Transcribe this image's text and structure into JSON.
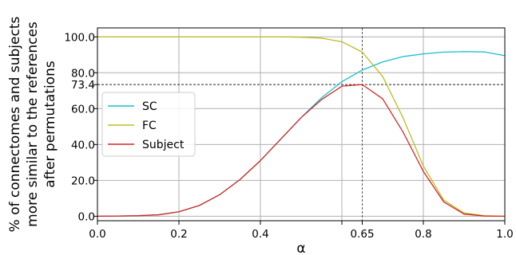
{
  "chart_data": {
    "type": "line",
    "xlabel": "α",
    "ylabel_lines": [
      "% of connectomes and subjects",
      "more similar to the references",
      "after permutations"
    ],
    "xlim": [
      0.0,
      1.0
    ],
    "ylim": [
      -2.5,
      105
    ],
    "x_ticks": [
      0.0,
      0.2,
      0.4,
      0.6,
      0.65,
      0.8,
      1.0
    ],
    "x_tick_labels": [
      "0.0",
      "0.2",
      "0.4",
      "",
      "0.65",
      "0.8",
      "1.0"
    ],
    "y_ticks": [
      0.0,
      20.0,
      40.0,
      60.0,
      73.4,
      80.0,
      100.0
    ],
    "y_tick_labels": [
      "0.0",
      "20.0",
      "40.0",
      "60.0",
      "73.4",
      "80.0",
      "100.0"
    ],
    "grid": true,
    "legend_position": "center-left",
    "reference_lines": {
      "x": 0.65,
      "y": 73.4
    },
    "x": [
      0.0,
      0.05,
      0.1,
      0.15,
      0.2,
      0.25,
      0.3,
      0.35,
      0.4,
      0.45,
      0.5,
      0.55,
      0.6,
      0.65,
      0.7,
      0.75,
      0.8,
      0.85,
      0.9,
      0.95,
      1.0
    ],
    "series": [
      {
        "name": "SC",
        "color": "#17becf",
        "values": [
          0.0,
          0.1,
          0.3,
          0.8,
          2.5,
          6.0,
          12.0,
          20.5,
          31.0,
          43.0,
          55.0,
          66.0,
          75.0,
          81.5,
          86.0,
          89.0,
          90.5,
          91.5,
          91.8,
          91.6,
          89.5
        ]
      },
      {
        "name": "FC",
        "color": "#bcbd22",
        "values": [
          100.0,
          100.0,
          100.0,
          100.0,
          100.0,
          100.0,
          100.0,
          100.0,
          100.0,
          100.0,
          99.8,
          99.3,
          97.3,
          91.5,
          78.0,
          55.0,
          28.0,
          9.0,
          1.8,
          0.3,
          0.0
        ]
      },
      {
        "name": "Subject",
        "color": "#d62728",
        "values": [
          0.0,
          0.1,
          0.3,
          0.8,
          2.5,
          6.0,
          12.0,
          20.5,
          31.0,
          43.0,
          55.0,
          65.0,
          72.5,
          73.4,
          65.5,
          47.0,
          25.0,
          8.0,
          1.2,
          0.1,
          0.0
        ]
      }
    ]
  }
}
